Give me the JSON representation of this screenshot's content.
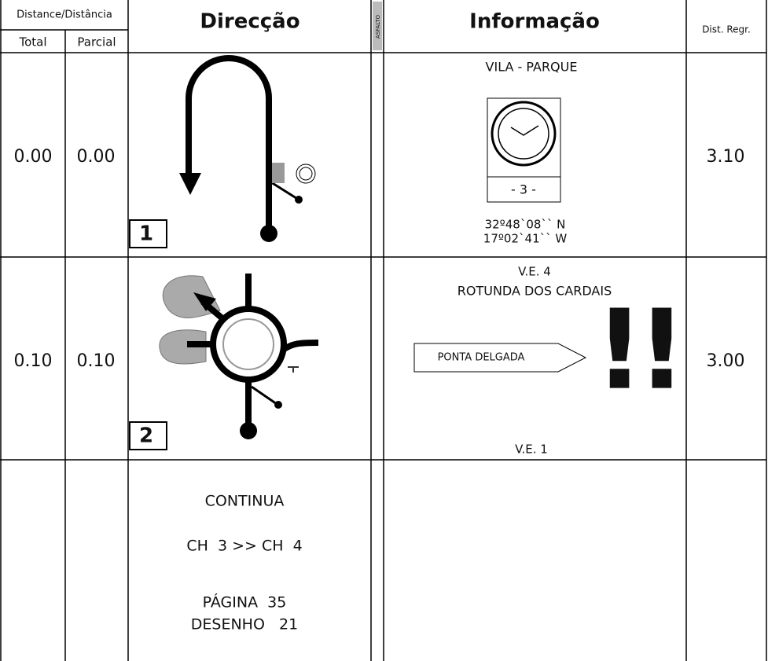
{
  "header": {
    "distance": "Distance/Distância",
    "total": "Total",
    "partial": "Parcial",
    "direction": "Direcção",
    "surface": "ASFALTO",
    "info": "Informação",
    "dist_regr": "Dist. Regr."
  },
  "rows": [
    {
      "total": "0.00",
      "partial": "0.00",
      "box": "1",
      "info": {
        "title": "VILA - PARQUE",
        "sign": "- 3 -",
        "coords": [
          "32º48`08`` N",
          "17º02`41`` W"
        ]
      },
      "regr": "3.10"
    },
    {
      "total": "0.10",
      "partial": "0.10",
      "box": "2",
      "info": {
        "top": [
          "V.E. 4",
          "ROTUNDA DOS CARDAIS"
        ],
        "arrow_sign": "PONTA DELGADA",
        "warning": "!!",
        "bottom": "V.E. 1"
      },
      "regr": "3.00"
    },
    {
      "direction": [
        "CONTINUA",
        "CH  3 >> CH  4",
        "PÁGINA  35",
        "DESENHO   21"
      ]
    }
  ]
}
